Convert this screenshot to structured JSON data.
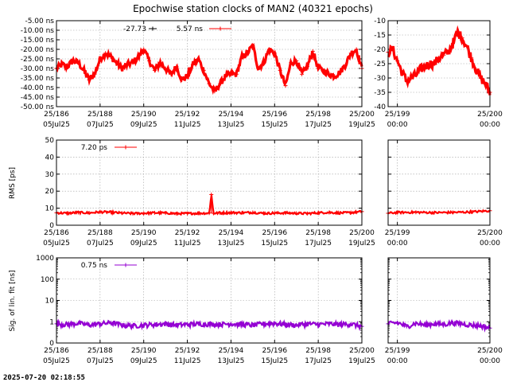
{
  "title": "Epochwise station clocks of MAN2 (40321 epochs)",
  "timestamp": "2025-07-20 02:18:55",
  "colors": {
    "clock": "#ff0000",
    "rms": "#ff0000",
    "sig": "#9400d3",
    "grid": "#a0a0a0"
  },
  "chart_data": [
    {
      "type": "line",
      "panel": "clock-main",
      "ylabel": "",
      "ylim": [
        -50,
        -5
      ],
      "scale": "linear",
      "ytick_labels": [
        "-5.00 ns",
        "-10.00 ns",
        "-15.00 ns",
        "-20.00 ns",
        "-25.00 ns",
        "-30.00 ns",
        "-35.00 ns",
        "-40.00 ns",
        "-45.00 ns",
        "-50.00 ns"
      ],
      "ytick_values": [
        -5,
        -10,
        -15,
        -20,
        -25,
        -30,
        -35,
        -40,
        -45,
        -50
      ],
      "xlim": [
        186,
        200
      ],
      "xtick_values": [
        186,
        188,
        190,
        192,
        194,
        196,
        198,
        200
      ],
      "xtick_labels": [
        [
          "25/186",
          "05Jul25"
        ],
        [
          "25/188",
          "07Jul25"
        ],
        [
          "25/190",
          "09Jul25"
        ],
        [
          "25/192",
          "11Jul25"
        ],
        [
          "25/194",
          "13Jul25"
        ],
        [
          "25/196",
          "15Jul25"
        ],
        [
          "25/198",
          "17Jul25"
        ],
        [
          "25/200",
          "19Jul25"
        ]
      ],
      "legend": [
        {
          "label": "-27.73",
          "color": "#000000"
        },
        {
          "label": "5.57 ns",
          "color": "#ff0000"
        }
      ],
      "series": [
        {
          "name": "clock",
          "x": [
            186.0,
            186.25,
            186.5,
            186.75,
            187.0,
            187.25,
            187.5,
            187.75,
            188.0,
            188.25,
            188.5,
            188.75,
            189.0,
            189.25,
            189.5,
            189.75,
            190.0,
            190.25,
            190.5,
            190.75,
            191.0,
            191.25,
            191.5,
            191.75,
            192.0,
            192.25,
            192.5,
            192.75,
            193.0,
            193.25,
            193.5,
            193.75,
            194.0,
            194.25,
            194.5,
            194.75,
            195.0,
            195.25,
            195.5,
            195.75,
            196.0,
            196.25,
            196.5,
            196.75,
            197.0,
            197.25,
            197.5,
            197.75,
            198.0,
            198.25,
            198.5,
            198.75,
            199.0,
            199.25,
            199.5,
            199.75,
            200.0
          ],
          "values": [
            -30,
            -28,
            -29,
            -26,
            -27,
            -31,
            -36,
            -33,
            -25,
            -22,
            -24,
            -27,
            -30,
            -28,
            -27,
            -24,
            -20,
            -26,
            -31,
            -27,
            -30,
            -33,
            -29,
            -36,
            -34,
            -28,
            -25,
            -31,
            -38,
            -42,
            -38,
            -34,
            -33,
            -33,
            -24,
            -22,
            -18,
            -30,
            -27,
            -20,
            -22,
            -31,
            -39,
            -27,
            -26,
            -33,
            -29,
            -21,
            -30,
            -31,
            -33,
            -34,
            -32,
            -28,
            -22,
            -20,
            -30
          ]
        }
      ]
    },
    {
      "type": "line",
      "panel": "clock-zoom",
      "ylim": [
        -40,
        -10
      ],
      "scale": "linear",
      "ytick_labels": [
        "-10",
        "-15",
        "-20",
        "-25",
        "-30",
        "-35",
        "-40"
      ],
      "ytick_values": [
        -10,
        -15,
        -20,
        -25,
        -30,
        -35,
        -40
      ],
      "xlim": [
        198.9,
        200.0
      ],
      "xtick_values": [
        199,
        200
      ],
      "xtick_labels": [
        [
          "25/199",
          "00:00"
        ],
        [
          "25/200",
          "00:00"
        ]
      ],
      "series": [
        {
          "name": "clock",
          "x": [
            198.9,
            198.95,
            199.0,
            199.05,
            199.1,
            199.15,
            199.2,
            199.25,
            199.3,
            199.35,
            199.4,
            199.45,
            199.5,
            199.55,
            199.6,
            199.65,
            199.7,
            199.75,
            199.8,
            199.85,
            199.9,
            199.95,
            200.0
          ],
          "values": [
            -21,
            -20,
            -24,
            -28,
            -31,
            -30,
            -29,
            -27,
            -26,
            -25,
            -25,
            -23,
            -22,
            -21,
            -18,
            -14,
            -16,
            -19,
            -23,
            -27,
            -30,
            -32,
            -35
          ]
        }
      ]
    },
    {
      "type": "line",
      "panel": "rms-main",
      "ylabel": "RMS [ps]",
      "ylim": [
        0,
        50
      ],
      "scale": "linear",
      "ytick_labels": [
        "50",
        "40",
        "30",
        "20",
        "10",
        "0"
      ],
      "ytick_values": [
        50,
        40,
        30,
        20,
        10,
        0
      ],
      "xlim": [
        186,
        200
      ],
      "xtick_values": [
        186,
        188,
        190,
        192,
        194,
        196,
        198,
        200
      ],
      "xtick_labels": [
        [
          "25/186",
          "05Jul25"
        ],
        [
          "25/188",
          "07Jul25"
        ],
        [
          "25/190",
          "09Jul25"
        ],
        [
          "25/192",
          "11Jul25"
        ],
        [
          "25/194",
          "13Jul25"
        ],
        [
          "25/196",
          "15Jul25"
        ],
        [
          "25/198",
          "17Jul25"
        ],
        [
          "25/200",
          "19Jul25"
        ]
      ],
      "legend": [
        {
          "label": "7.20 ps",
          "color": "#ff0000"
        }
      ],
      "series": [
        {
          "name": "rms",
          "x": [
            186.0,
            186.5,
            187.0,
            187.5,
            188.0,
            188.5,
            189.0,
            189.5,
            190.0,
            190.5,
            191.0,
            191.5,
            192.0,
            192.5,
            193.0,
            193.1,
            193.2,
            193.5,
            194.0,
            194.5,
            195.0,
            195.5,
            196.0,
            196.5,
            197.0,
            197.5,
            198.0,
            198.5,
            199.0,
            199.5,
            200.0
          ],
          "values": [
            7.3,
            7.0,
            7.5,
            7.2,
            7.8,
            7.6,
            7.1,
            6.9,
            7.0,
            7.3,
            7.2,
            6.8,
            6.9,
            7.0,
            7.1,
            18.0,
            7.0,
            7.2,
            7.4,
            7.3,
            7.5,
            7.0,
            7.1,
            7.2,
            7.0,
            6.9,
            7.3,
            7.5,
            7.2,
            7.4,
            8.0
          ]
        }
      ]
    },
    {
      "type": "line",
      "panel": "rms-zoom",
      "ylim": [
        0,
        50
      ],
      "scale": "linear",
      "ytick_labels": [],
      "ytick_values": [
        50,
        40,
        30,
        20,
        10,
        0
      ],
      "xlim": [
        198.9,
        200.0
      ],
      "xtick_values": [
        199,
        200
      ],
      "xtick_labels": [
        [
          "25/199",
          "00:00"
        ],
        [
          "25/200",
          "00:00"
        ]
      ],
      "series": [
        {
          "name": "rms",
          "x": [
            198.9,
            199.0,
            199.2,
            199.4,
            199.6,
            199.8,
            200.0
          ],
          "values": [
            7.0,
            7.5,
            7.6,
            7.4,
            7.5,
            7.8,
            8.5
          ]
        }
      ]
    },
    {
      "type": "line",
      "panel": "sig-main",
      "ylabel": "Sig. of lin. fit [ns]",
      "ylim": [
        0.1,
        1000
      ],
      "scale": "log",
      "ytick_labels": [
        "1000",
        "100",
        "10",
        "1",
        "0"
      ],
      "ytick_values": [
        1000,
        100,
        10,
        1,
        0.1
      ],
      "xlim": [
        186,
        200
      ],
      "xtick_values": [
        186,
        188,
        190,
        192,
        194,
        196,
        198,
        200
      ],
      "xtick_labels": [
        [
          "25/186",
          "05Jul25"
        ],
        [
          "25/188",
          "07Jul25"
        ],
        [
          "25/190",
          "09Jul25"
        ],
        [
          "25/192",
          "11Jul25"
        ],
        [
          "25/194",
          "13Jul25"
        ],
        [
          "25/196",
          "15Jul25"
        ],
        [
          "25/198",
          "17Jul25"
        ],
        [
          "25/200",
          "19Jul25"
        ]
      ],
      "legend": [
        {
          "label": "0.75 ns",
          "color": "#9400d3"
        }
      ],
      "series": [
        {
          "name": "sig",
          "x": [
            186.0,
            186.5,
            187.0,
            187.5,
            188.0,
            188.5,
            189.0,
            189.5,
            190.0,
            190.5,
            191.0,
            191.5,
            192.0,
            192.5,
            193.0,
            193.5,
            194.0,
            194.5,
            195.0,
            195.5,
            196.0,
            196.5,
            197.0,
            197.5,
            198.0,
            198.5,
            199.0,
            199.5,
            200.0
          ],
          "values": [
            0.8,
            0.75,
            0.85,
            0.7,
            0.8,
            0.9,
            0.7,
            0.65,
            0.7,
            0.75,
            0.8,
            0.7,
            0.75,
            0.8,
            0.78,
            0.76,
            0.8,
            0.75,
            0.7,
            0.8,
            0.85,
            0.75,
            0.7,
            0.8,
            0.75,
            0.8,
            0.75,
            0.78,
            0.6
          ]
        }
      ]
    },
    {
      "type": "line",
      "panel": "sig-zoom",
      "ylim": [
        0.1,
        1000
      ],
      "scale": "log",
      "ytick_labels": [],
      "ytick_values": [
        1000,
        100,
        10,
        1,
        0.1
      ],
      "xlim": [
        198.9,
        200.0
      ],
      "xtick_values": [
        199,
        200
      ],
      "xtick_labels": [
        [
          "25/199",
          "00:00"
        ],
        [
          "25/200",
          "00:00"
        ]
      ],
      "series": [
        {
          "name": "sig",
          "x": [
            198.9,
            199.0,
            199.1,
            199.2,
            199.3,
            199.4,
            199.5,
            199.6,
            199.7,
            199.8,
            199.9,
            200.0
          ],
          "values": [
            0.8,
            0.9,
            0.6,
            0.85,
            0.7,
            0.8,
            0.75,
            0.9,
            0.8,
            0.7,
            0.65,
            0.5
          ]
        }
      ]
    }
  ]
}
